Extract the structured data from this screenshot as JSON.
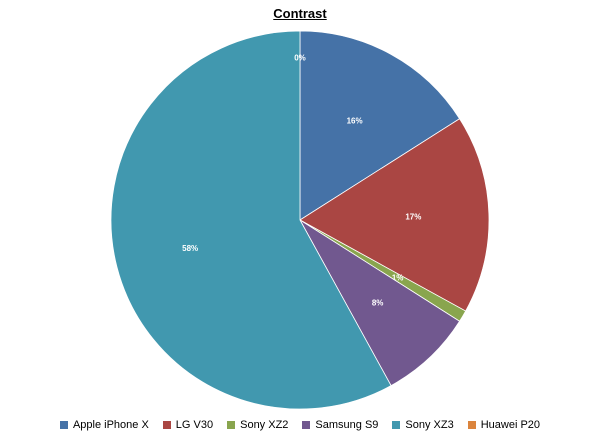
{
  "chart_data": {
    "type": "pie",
    "title": "Contrast",
    "legend_position": "bottom",
    "slices": [
      {
        "label": "Apple iPhone X",
        "value": 16,
        "data_label": "16%",
        "color": "#4572A7"
      },
      {
        "label": "LG V30",
        "value": 17,
        "data_label": "17%",
        "color": "#AA4643"
      },
      {
        "label": "Sony XZ2",
        "value": 1,
        "data_label": "1%",
        "color": "#89A54E"
      },
      {
        "label": "Samsung S9",
        "value": 8,
        "data_label": "8%",
        "color": "#71588F"
      },
      {
        "label": "Sony XZ3",
        "value": 58,
        "data_label": "58%",
        "color": "#4198AF"
      },
      {
        "label": "Huawei P20",
        "value": 0,
        "data_label": "0%",
        "color": "#DB843D"
      }
    ]
  }
}
